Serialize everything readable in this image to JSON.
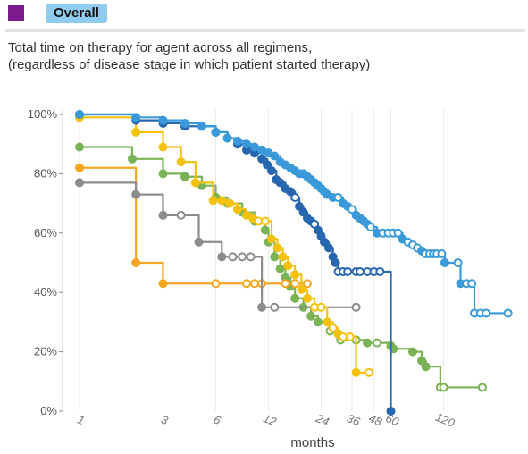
{
  "header": {
    "title": "Overall",
    "swatch_color": "#7a1a8c",
    "pill_color": "#8fcdf0"
  },
  "subtitle": {
    "line1": "Total time on therapy for agent across all regimens,",
    "line2": "(regardless of disease stage in which patient started therapy)"
  },
  "chart_data": {
    "type": "line",
    "xlabel": "months",
    "ylabel": "",
    "x_scale": "log",
    "x_ticks": [
      {
        "value": 1,
        "label": "1"
      },
      {
        "value": 3,
        "label": "3"
      },
      {
        "value": 6,
        "label": "6"
      },
      {
        "value": 12,
        "label": "12"
      },
      {
        "value": 24,
        "label": "24"
      },
      {
        "value": 36,
        "label": "36"
      },
      {
        "value": 48,
        "label": "48"
      },
      {
        "value": 60,
        "label": "60"
      },
      {
        "value": 120,
        "label": "120"
      }
    ],
    "y_ticks": [
      {
        "value": 0,
        "label": "0%"
      },
      {
        "value": 20,
        "label": "20%"
      },
      {
        "value": 40,
        "label": "40%"
      },
      {
        "value": 60,
        "label": "60%"
      },
      {
        "value": 80,
        "label": "80%"
      },
      {
        "value": 100,
        "label": "100%"
      }
    ],
    "xlim": [
      0.8,
      320
    ],
    "ylim": [
      0,
      100
    ],
    "grid": "vertical",
    "step": true,
    "series": [
      {
        "color": "#7ab356",
        "points": [
          {
            "x": 1,
            "y": 89
          },
          {
            "x": 2,
            "y": 85
          },
          {
            "x": 3,
            "y": 80
          },
          {
            "x": 4,
            "y": 79
          },
          {
            "x": 5,
            "y": 76
          },
          {
            "x": 6,
            "y": 72
          },
          {
            "x": 7,
            "y": 70
          },
          {
            "x": 8.5,
            "y": 67
          },
          {
            "x": 10,
            "y": 64
          },
          {
            "x": 11.5,
            "y": 61
          },
          {
            "x": 12,
            "y": 57
          },
          {
            "x": 13,
            "y": 52
          },
          {
            "x": 14,
            "y": 48
          },
          {
            "x": 15,
            "y": 45
          },
          {
            "x": 16,
            "y": 42
          },
          {
            "x": 17,
            "y": 38
          },
          {
            "x": 19,
            "y": 35
          },
          {
            "x": 21,
            "y": 32
          },
          {
            "x": 23,
            "y": 30
          },
          {
            "x": 27,
            "y": 27,
            "c": true
          },
          {
            "x": 31,
            "y": 24,
            "c": true
          },
          {
            "x": 38,
            "y": 24,
            "c": true
          },
          {
            "x": 44,
            "y": 23
          },
          {
            "x": 50,
            "y": 23,
            "c": true
          },
          {
            "x": 60,
            "y": 22
          },
          {
            "x": 62,
            "y": 21
          },
          {
            "x": 80,
            "y": 20
          },
          {
            "x": 90,
            "y": 17
          },
          {
            "x": 95,
            "y": 15
          },
          {
            "x": 115,
            "y": 8,
            "c": true
          },
          {
            "x": 120,
            "y": 8,
            "c": true
          },
          {
            "x": 200,
            "y": 8,
            "c": true
          }
        ]
      },
      {
        "color": "#f5a623",
        "points": [
          {
            "x": 1,
            "y": 82
          },
          {
            "x": 2.1,
            "y": 50
          },
          {
            "x": 3,
            "y": 43
          },
          {
            "x": 6,
            "y": 43,
            "c": true
          },
          {
            "x": 9,
            "y": 43,
            "c": true
          },
          {
            "x": 10,
            "y": 43,
            "c": true
          },
          {
            "x": 11,
            "y": 43,
            "c": true
          },
          {
            "x": 15,
            "y": 43,
            "c": true
          },
          {
            "x": 17,
            "y": 43,
            "c": true
          },
          {
            "x": 20,
            "y": 43,
            "c": true
          }
        ]
      },
      {
        "color": "#8c8c8c",
        "points": [
          {
            "x": 1,
            "y": 77
          },
          {
            "x": 2.1,
            "y": 73
          },
          {
            "x": 3,
            "y": 66
          },
          {
            "x": 3.8,
            "y": 66,
            "c": true
          },
          {
            "x": 4.8,
            "y": 57
          },
          {
            "x": 6.5,
            "y": 52
          },
          {
            "x": 7.5,
            "y": 52,
            "c": true
          },
          {
            "x": 8.5,
            "y": 52,
            "c": true
          },
          {
            "x": 9.5,
            "y": 52,
            "c": true
          },
          {
            "x": 11,
            "y": 35
          },
          {
            "x": 13,
            "y": 35,
            "c": true
          },
          {
            "x": 38,
            "y": 35,
            "c": true
          }
        ]
      },
      {
        "color": "#f4c20d",
        "points": [
          {
            "x": 1,
            "y": 99
          },
          {
            "x": 2.1,
            "y": 94
          },
          {
            "x": 3,
            "y": 89
          },
          {
            "x": 3.8,
            "y": 84
          },
          {
            "x": 4.6,
            "y": 77
          },
          {
            "x": 5.8,
            "y": 71
          },
          {
            "x": 6.5,
            "y": 71
          },
          {
            "x": 7.2,
            "y": 70
          },
          {
            "x": 8.0,
            "y": 68
          },
          {
            "x": 9.0,
            "y": 66
          },
          {
            "x": 9.8,
            "y": 65
          },
          {
            "x": 10.5,
            "y": 64,
            "c": true
          },
          {
            "x": 11.5,
            "y": 64,
            "c": true
          },
          {
            "x": 12.5,
            "y": 58
          },
          {
            "x": 13.5,
            "y": 55
          },
          {
            "x": 14.5,
            "y": 52
          },
          {
            "x": 15.5,
            "y": 49
          },
          {
            "x": 17,
            "y": 46
          },
          {
            "x": 18.5,
            "y": 41
          },
          {
            "x": 20,
            "y": 38
          },
          {
            "x": 22,
            "y": 35,
            "c": true
          },
          {
            "x": 24,
            "y": 35,
            "c": true
          },
          {
            "x": 26,
            "y": 30
          },
          {
            "x": 28,
            "y": 28,
            "c": true
          },
          {
            "x": 30,
            "y": 26
          },
          {
            "x": 32,
            "y": 25,
            "c": true
          },
          {
            "x": 35,
            "y": 25,
            "c": true
          },
          {
            "x": 38,
            "y": 13
          },
          {
            "x": 45,
            "y": 13,
            "c": true
          }
        ]
      },
      {
        "color": "#2767b0",
        "points": [
          {
            "x": 1,
            "y": 100
          },
          {
            "x": 2.1,
            "y": 98
          },
          {
            "x": 3,
            "y": 97
          },
          {
            "x": 4,
            "y": 96
          },
          {
            "x": 5,
            "y": 96
          },
          {
            "x": 6,
            "y": 94
          },
          {
            "x": 7,
            "y": 92
          },
          {
            "x": 8,
            "y": 90
          },
          {
            "x": 9,
            "y": 88
          },
          {
            "x": 10,
            "y": 87
          },
          {
            "x": 11,
            "y": 85
          },
          {
            "x": 11.8,
            "y": 83
          },
          {
            "x": 12.5,
            "y": 81
          },
          {
            "x": 13.3,
            "y": 78
          },
          {
            "x": 14,
            "y": 77
          },
          {
            "x": 15,
            "y": 75
          },
          {
            "x": 16,
            "y": 74
          },
          {
            "x": 17,
            "y": 72,
            "c": true
          },
          {
            "x": 18,
            "y": 69
          },
          {
            "x": 19,
            "y": 67
          },
          {
            "x": 20,
            "y": 65
          },
          {
            "x": 21,
            "y": 64
          },
          {
            "x": 22,
            "y": 63,
            "c": true
          },
          {
            "x": 23,
            "y": 61
          },
          {
            "x": 24,
            "y": 59
          },
          {
            "x": 25,
            "y": 57
          },
          {
            "x": 26.5,
            "y": 55
          },
          {
            "x": 28,
            "y": 52
          },
          {
            "x": 29,
            "y": 50
          },
          {
            "x": 30,
            "y": 47,
            "c": true
          },
          {
            "x": 32,
            "y": 47,
            "c": true
          },
          {
            "x": 34,
            "y": 47,
            "c": true
          },
          {
            "x": 38,
            "y": 47,
            "c": true
          },
          {
            "x": 40,
            "y": 47,
            "c": true
          },
          {
            "x": 44,
            "y": 47,
            "c": true
          },
          {
            "x": 48,
            "y": 47,
            "c": true
          },
          {
            "x": 52,
            "y": 47,
            "c": true
          },
          {
            "x": 60,
            "y": 0
          }
        ]
      },
      {
        "color": "#3a9ad9",
        "points": [
          {
            "x": 1,
            "y": 100
          },
          {
            "x": 2.1,
            "y": 99
          },
          {
            "x": 3,
            "y": 98
          },
          {
            "x": 4,
            "y": 97
          },
          {
            "x": 5,
            "y": 96
          },
          {
            "x": 6,
            "y": 94
          },
          {
            "x": 7,
            "y": 92
          },
          {
            "x": 8,
            "y": 91
          },
          {
            "x": 9,
            "y": 90
          },
          {
            "x": 10,
            "y": 89
          },
          {
            "x": 11,
            "y": 88
          },
          {
            "x": 12,
            "y": 87
          },
          {
            "x": 13,
            "y": 86
          },
          {
            "x": 14,
            "y": 84
          },
          {
            "x": 15,
            "y": 83
          },
          {
            "x": 16,
            "y": 82
          },
          {
            "x": 17,
            "y": 81
          },
          {
            "x": 18,
            "y": 80
          },
          {
            "x": 19,
            "y": 80
          },
          {
            "x": 20,
            "y": 79
          },
          {
            "x": 21,
            "y": 78
          },
          {
            "x": 22,
            "y": 77
          },
          {
            "x": 23,
            "y": 76
          },
          {
            "x": 24,
            "y": 75
          },
          {
            "x": 25,
            "y": 74
          },
          {
            "x": 26,
            "y": 73
          },
          {
            "x": 28,
            "y": 72
          },
          {
            "x": 30,
            "y": 72,
            "c": true
          },
          {
            "x": 32,
            "y": 70
          },
          {
            "x": 34,
            "y": 69
          },
          {
            "x": 36,
            "y": 68,
            "c": true
          },
          {
            "x": 38,
            "y": 66
          },
          {
            "x": 40,
            "y": 65
          },
          {
            "x": 42,
            "y": 64
          },
          {
            "x": 44,
            "y": 63
          },
          {
            "x": 46,
            "y": 62,
            "c": true
          },
          {
            "x": 50,
            "y": 60
          },
          {
            "x": 54,
            "y": 60,
            "c": true
          },
          {
            "x": 58,
            "y": 60,
            "c": true
          },
          {
            "x": 62,
            "y": 60,
            "c": true
          },
          {
            "x": 66,
            "y": 60,
            "c": true
          },
          {
            "x": 70,
            "y": 58
          },
          {
            "x": 75,
            "y": 57,
            "c": true
          },
          {
            "x": 80,
            "y": 56,
            "c": true
          },
          {
            "x": 85,
            "y": 55,
            "c": true
          },
          {
            "x": 90,
            "y": 54
          },
          {
            "x": 95,
            "y": 53,
            "c": true
          },
          {
            "x": 100,
            "y": 53,
            "c": true
          },
          {
            "x": 105,
            "y": 53,
            "c": true
          },
          {
            "x": 110,
            "y": 53,
            "c": true
          },
          {
            "x": 117,
            "y": 53,
            "c": true
          },
          {
            "x": 122,
            "y": 50
          },
          {
            "x": 145,
            "y": 50,
            "c": true
          },
          {
            "x": 150,
            "y": 43
          },
          {
            "x": 162,
            "y": 43,
            "c": true
          },
          {
            "x": 174,
            "y": 43,
            "c": true
          },
          {
            "x": 180,
            "y": 33,
            "c": true
          },
          {
            "x": 195,
            "y": 33,
            "c": true
          },
          {
            "x": 210,
            "y": 33,
            "c": true
          },
          {
            "x": 280,
            "y": 33,
            "c": true
          }
        ]
      }
    ]
  }
}
